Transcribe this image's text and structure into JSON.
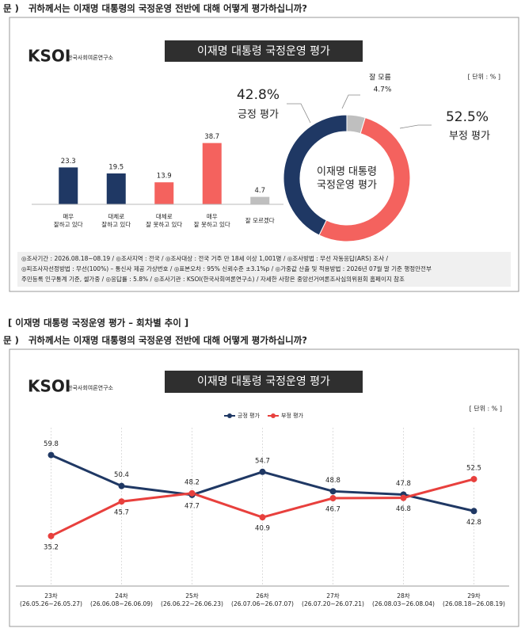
{
  "question": "문 )   귀하께서는 이재명 대통령의 국정운영 전반에 대해 어떻게 평가하십니까?",
  "logo": {
    "name": "KSOI",
    "org": "한국사회여론연구소"
  },
  "notes": [
    "◎조사기간 : 2026.08.18~08.19 / ◎조사지역 : 전국 / ◎조사대상 : 전국 거주 만 18세 이상 1,001명 / ◎조사방법 : 무선 자동응답(ARS) 조사 /",
    "◎피조사자선정방법 : 무선(100%) – 통신사 제공 가상번호 / ◎표본오차 : 95% 신뢰수준 ±3.1%p / ◎가중값 산출 및 적용방법 : 2026년 07월 말 기준 행정안전부",
    "주민등록 인구통계 기준, 셀가중 / ◎응답률 : 5.8% / ◎조사기관 : KSOI(한국사회여론연구소) / 자세한 사항은 중앙선거여론조사심의위원회 홈페이지 참조"
  ],
  "section_title": "[ 이재명 대통령 국정운영 평가 – 회차별 추이 ]",
  "chart_data": [
    {
      "type": "bar",
      "title": "이재명 대통령 국정운영 평가",
      "unit": "[ 단위 : % ]",
      "categories": [
        "매우\n잘하고 있다",
        "대체로\n잘하고 있다",
        "대체로\n잘 못하고 있다",
        "매우\n잘 못하고 있다",
        "잘 모르겠다"
      ],
      "values": [
        23.3,
        19.5,
        13.9,
        38.7,
        4.7
      ],
      "colors": [
        "#1f3864",
        "#1f3864",
        "#f4625e",
        "#f4625e",
        "#bfbfbf"
      ],
      "ylim": [
        0,
        40
      ]
    },
    {
      "type": "pie",
      "center_label": "이재명 대통령\n국정운영 평가",
      "categories": [
        "잘 모름",
        "부정 평가",
        "긍정 평가"
      ],
      "values": [
        4.7,
        52.5,
        42.8
      ],
      "value_labels": [
        "4.7%",
        "52.5%",
        "42.8%"
      ],
      "colors": [
        "#bfbfbf",
        "#f4625e",
        "#1f3864"
      ]
    },
    {
      "type": "line",
      "title": "이재명 대통령 국정운영 평가",
      "unit": "[ 단위 : % ]",
      "categories": [
        "23차\n(26.05.26~26.05.27)",
        "24차\n(26.06.08~26.06.09)",
        "25차\n(26.06.22~26.06.23)",
        "26차\n(26.07.06~26.07.07)",
        "27차\n(26.07.20~26.07.21)",
        "28차\n(26.08.03~26.08.04)",
        "29차\n(26.08.18~26.08.19)"
      ],
      "series": [
        {
          "name": "긍정 평가",
          "color": "#1f3864",
          "values": [
            59.8,
            50.4,
            47.7,
            54.7,
            48.8,
            47.8,
            42.8
          ]
        },
        {
          "name": "부정 평가",
          "color": "#e8403d",
          "values": [
            35.2,
            45.7,
            48.2,
            40.9,
            46.7,
            46.8,
            52.5
          ]
        }
      ],
      "ylim": [
        20,
        65
      ]
    }
  ]
}
